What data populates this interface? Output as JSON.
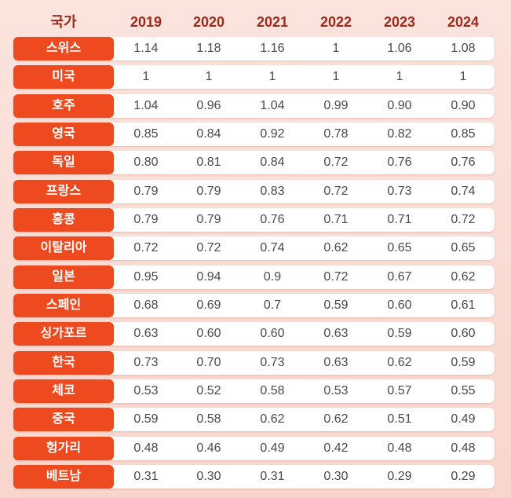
{
  "table": {
    "header": [
      "국가",
      "2019",
      "2020",
      "2021",
      "2022",
      "2023",
      "2024"
    ],
    "rows": [
      [
        "스위스",
        "1.14",
        "1.18",
        "1.16",
        "1",
        "1.06",
        "1.08"
      ],
      [
        "미국",
        "1",
        "1",
        "1",
        "1",
        "1",
        "1"
      ],
      [
        "호주",
        "1.04",
        "0.96",
        "1.04",
        "0.99",
        "0.90",
        "0.90"
      ],
      [
        "영국",
        "0.85",
        "0.84",
        "0.92",
        "0.78",
        "0.82",
        "0.85"
      ],
      [
        "독일",
        "0.80",
        "0.81",
        "0.84",
        "0.72",
        "0.76",
        "0.76"
      ],
      [
        "프랑스",
        "0.79",
        "0.79",
        "0.83",
        "0.72",
        "0.73",
        "0.74"
      ],
      [
        "홍콩",
        "0.79",
        "0.79",
        "0.76",
        "0.71",
        "0.71",
        "0.72"
      ],
      [
        "이탈리아",
        "0.72",
        "0.72",
        "0.74",
        "0.62",
        "0.65",
        "0.65"
      ],
      [
        "일본",
        "0.95",
        "0.94",
        "0.9",
        "0.72",
        "0.67",
        "0.62"
      ],
      [
        "스페인",
        "0.68",
        "0.69",
        "0.7",
        "0.59",
        "0.60",
        "0.61"
      ],
      [
        "싱가포르",
        "0.63",
        "0.60",
        "0.60",
        "0.63",
        "0.59",
        "0.60"
      ],
      [
        "한국",
        "0.73",
        "0.70",
        "0.73",
        "0.63",
        "0.62",
        "0.59"
      ],
      [
        "체코",
        "0.53",
        "0.52",
        "0.58",
        "0.53",
        "0.57",
        "0.55"
      ],
      [
        "중국",
        "0.59",
        "0.58",
        "0.62",
        "0.62",
        "0.51",
        "0.49"
      ],
      [
        "헝가리",
        "0.48",
        "0.46",
        "0.49",
        "0.42",
        "0.48",
        "0.48"
      ],
      [
        "베트남",
        "0.31",
        "0.30",
        "0.31",
        "0.30",
        "0.29",
        "0.29"
      ]
    ]
  }
}
